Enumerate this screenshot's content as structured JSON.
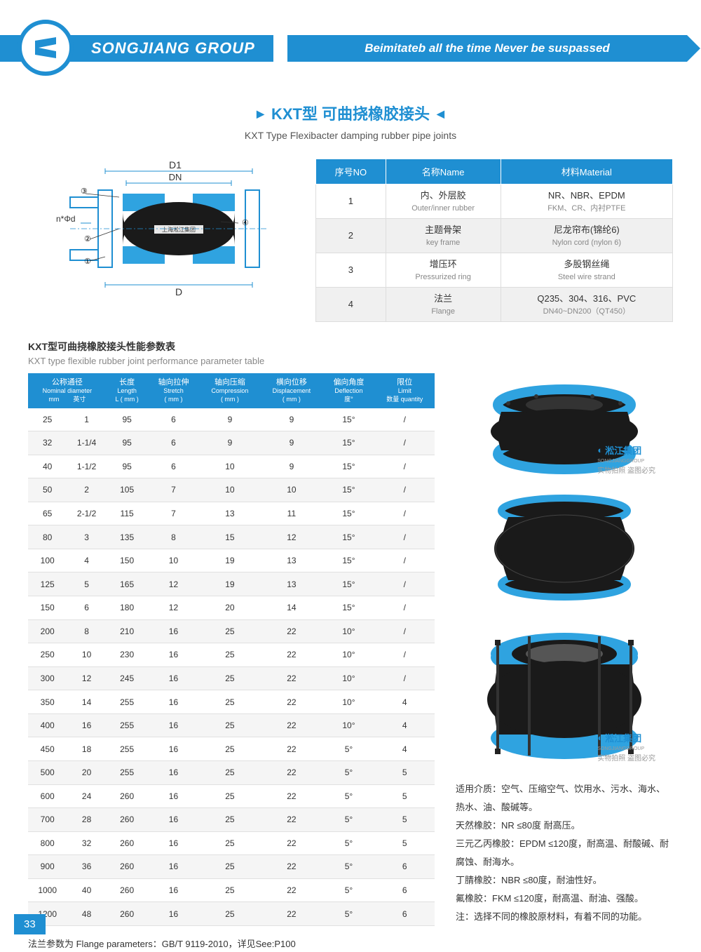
{
  "header": {
    "brand": "SONGJIANG GROUP",
    "slogan": "Beimitateb all the time Never be suspassed"
  },
  "title": {
    "cn": "KXT型 可曲挠橡胶接头",
    "en": "KXT Type Flexibacter damping rubber pipe joints"
  },
  "diagram": {
    "labels": {
      "d1": "D1",
      "dn": "DN",
      "nphi": "n*Φd",
      "d": "D",
      "tag": "上海淞江集团"
    },
    "nums": [
      "①",
      "②",
      "③",
      "④"
    ]
  },
  "materials": {
    "headers": [
      "序号NO",
      "名称Name",
      "材料Material"
    ],
    "rows": [
      {
        "no": "1",
        "name_cn": "内、外层胶",
        "name_en": "Outer/inner rubber",
        "mat_cn": "NR、NBR、EPDM",
        "mat_en": "FKM、CR、内衬PTFE"
      },
      {
        "no": "2",
        "name_cn": "主题骨架",
        "name_en": "key frame",
        "mat_cn": "尼龙帘布(锦纶6)",
        "mat_en": "Nylon cord (nylon 6)"
      },
      {
        "no": "3",
        "name_cn": "增压环",
        "name_en": "Pressurized ring",
        "mat_cn": "多股钢丝绳",
        "mat_en": "Steel wire strand"
      },
      {
        "no": "4",
        "name_cn": "法兰",
        "name_en": "Flange",
        "mat_cn": "Q235、304、316、PVC",
        "mat_en": "DN40~DN200（QT450）"
      }
    ]
  },
  "paramTitle": {
    "cn": "KXT型可曲挠橡胶接头性能参数表",
    "en": "KXT type flexible rubber joint performance parameter table"
  },
  "paramHeaders": [
    {
      "cn": "公称通径",
      "en": "Nominal diameter",
      "u1": "mm",
      "u2": "英寸"
    },
    {
      "cn": "长度",
      "en": "Length",
      "u": "L ( mm )"
    },
    {
      "cn": "轴向拉伸",
      "en": "Stretch",
      "u": "( mm )"
    },
    {
      "cn": "轴向压缩",
      "en": "Compression",
      "u": "( mm )"
    },
    {
      "cn": "横向位移",
      "en": "Displacement",
      "u": "( mm )"
    },
    {
      "cn": "偏向角度",
      "en": "Deflection",
      "u": "度°"
    },
    {
      "cn": "限位",
      "en": "Limit",
      "u": "数量 quantity"
    }
  ],
  "paramRows": [
    [
      "25",
      "1",
      "95",
      "6",
      "9",
      "9",
      "15°",
      "/"
    ],
    [
      "32",
      "1-1/4",
      "95",
      "6",
      "9",
      "9",
      "15°",
      "/"
    ],
    [
      "40",
      "1-1/2",
      "95",
      "6",
      "10",
      "9",
      "15°",
      "/"
    ],
    [
      "50",
      "2",
      "105",
      "7",
      "10",
      "10",
      "15°",
      "/"
    ],
    [
      "65",
      "2-1/2",
      "115",
      "7",
      "13",
      "11",
      "15°",
      "/"
    ],
    [
      "80",
      "3",
      "135",
      "8",
      "15",
      "12",
      "15°",
      "/"
    ],
    [
      "100",
      "4",
      "150",
      "10",
      "19",
      "13",
      "15°",
      "/"
    ],
    [
      "125",
      "5",
      "165",
      "12",
      "19",
      "13",
      "15°",
      "/"
    ],
    [
      "150",
      "6",
      "180",
      "12",
      "20",
      "14",
      "15°",
      "/"
    ],
    [
      "200",
      "8",
      "210",
      "16",
      "25",
      "22",
      "10°",
      "/"
    ],
    [
      "250",
      "10",
      "230",
      "16",
      "25",
      "22",
      "10°",
      "/"
    ],
    [
      "300",
      "12",
      "245",
      "16",
      "25",
      "22",
      "10°",
      "/"
    ],
    [
      "350",
      "14",
      "255",
      "16",
      "25",
      "22",
      "10°",
      "4"
    ],
    [
      "400",
      "16",
      "255",
      "16",
      "25",
      "22",
      "10°",
      "4"
    ],
    [
      "450",
      "18",
      "255",
      "16",
      "25",
      "22",
      "5°",
      "4"
    ],
    [
      "500",
      "20",
      "255",
      "16",
      "25",
      "22",
      "5°",
      "5"
    ],
    [
      "600",
      "24",
      "260",
      "16",
      "25",
      "22",
      "5°",
      "5"
    ],
    [
      "700",
      "28",
      "260",
      "16",
      "25",
      "22",
      "5°",
      "5"
    ],
    [
      "800",
      "32",
      "260",
      "16",
      "25",
      "22",
      "5°",
      "5"
    ],
    [
      "900",
      "36",
      "260",
      "16",
      "25",
      "22",
      "5°",
      "6"
    ],
    [
      "1000",
      "40",
      "260",
      "16",
      "25",
      "22",
      "5°",
      "6"
    ],
    [
      "1200",
      "48",
      "260",
      "16",
      "25",
      "22",
      "5°",
      "6"
    ]
  ],
  "watermark": {
    "brand": "淞江集团",
    "sub": "SONGJIANGGROUP",
    "note": "实物拍照 盗图必究"
  },
  "notes": [
    "适用介质：空气、压缩空气、饮用水、污水、海水、热水、油、酸碱等。",
    "天然橡胶：NR ≤80度   耐高压。",
    "三元乙丙橡胶：EPDM ≤120度，耐高温、耐酸碱、耐腐蚀、耐海水。",
    "丁腈橡胶：NBR ≤80度，耐油性好。",
    "氟橡胶：FKM ≤120度，耐高温、耐油、强酸。",
    "注：选择不同的橡胶原材料，有着不同的功能。"
  ],
  "flangeNote": "法兰参数为 Flange parameters：GB/T 9119-2010，详见See:P100",
  "pageNum": "33",
  "colors": {
    "primary": "#1f8fd2",
    "flange": "#2fa3e0",
    "rubber": "#1a1a1a"
  }
}
